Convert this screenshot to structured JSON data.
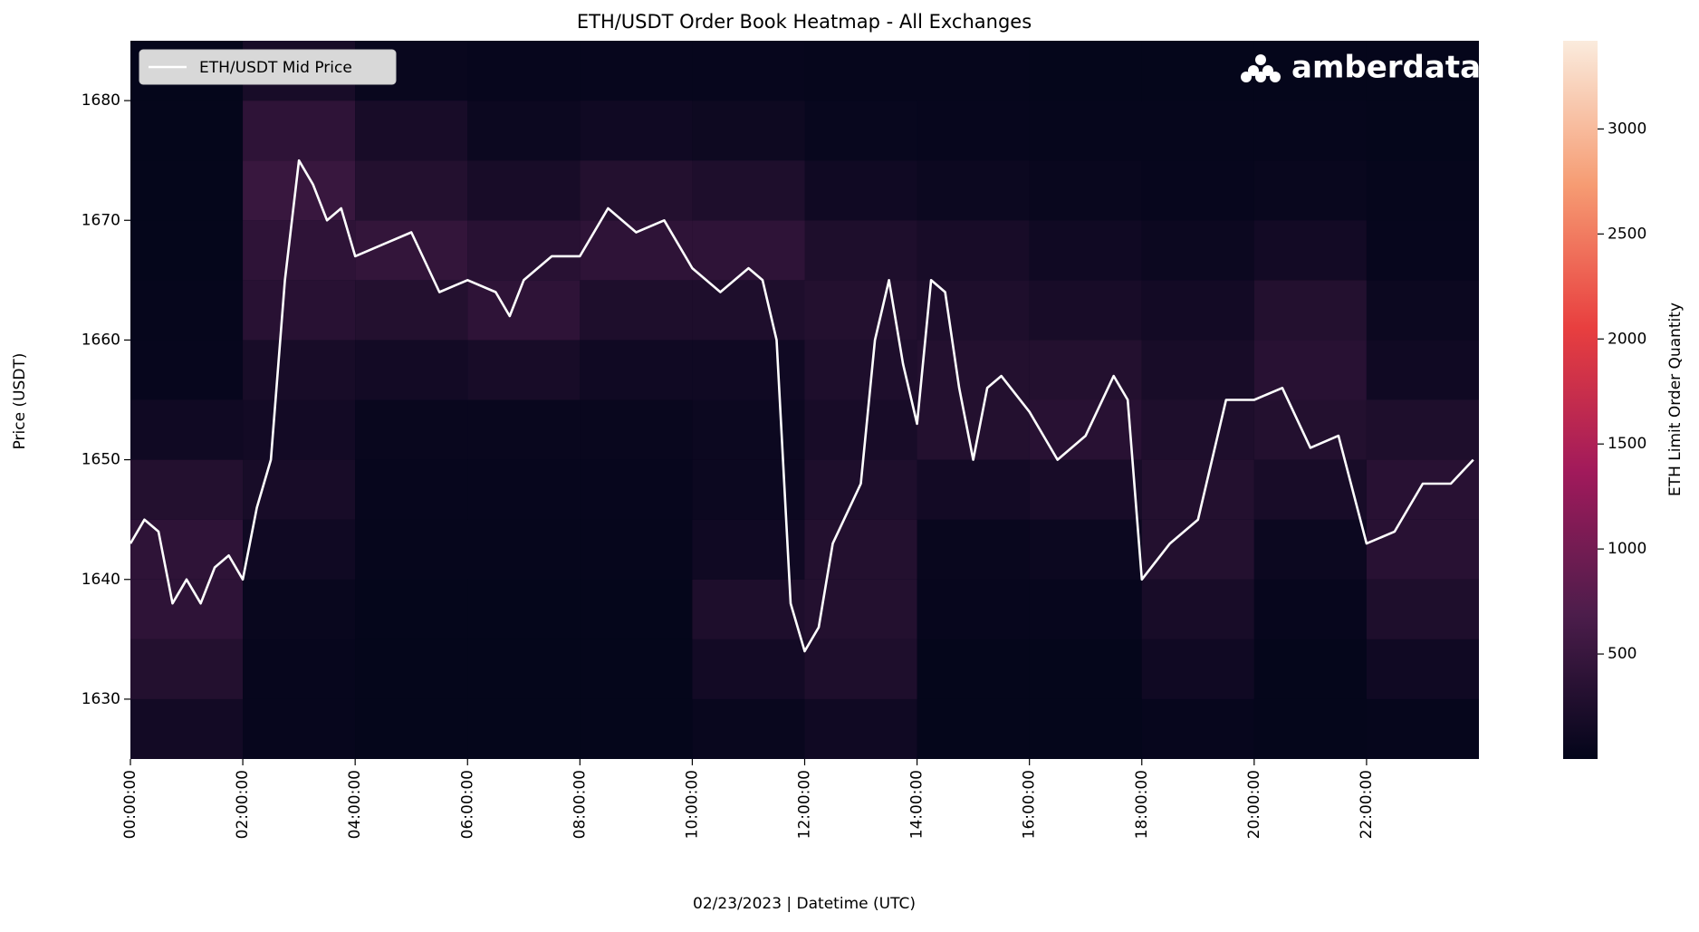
{
  "chart_data": {
    "type": "heatmap",
    "title": "ETH/USDT Order Book Heatmap - All Exchanges",
    "xlabel": "02/23/2023 | Datetime (UTC)",
    "ylabel": "Price (USDT)",
    "logo": "amberdata",
    "legend": "upper left",
    "xlim": [
      0,
      24
    ],
    "ylim": [
      1625,
      1685
    ],
    "xticks": [
      {
        "value": 0,
        "label": "00:00:00"
      },
      {
        "value": 2,
        "label": "02:00:00"
      },
      {
        "value": 4,
        "label": "04:00:00"
      },
      {
        "value": 6,
        "label": "06:00:00"
      },
      {
        "value": 8,
        "label": "08:00:00"
      },
      {
        "value": 10,
        "label": "10:00:00"
      },
      {
        "value": 12,
        "label": "12:00:00"
      },
      {
        "value": 14,
        "label": "14:00:00"
      },
      {
        "value": 16,
        "label": "16:00:00"
      },
      {
        "value": 18,
        "label": "18:00:00"
      },
      {
        "value": 20,
        "label": "20:00:00"
      },
      {
        "value": 22,
        "label": "22:00:00"
      }
    ],
    "yticks": [
      1630,
      1640,
      1650,
      1660,
      1670,
      1680
    ],
    "xbins": [
      0,
      2,
      4,
      6,
      8,
      10,
      12,
      14,
      16,
      18,
      20,
      22,
      24
    ],
    "ybins": [
      1625,
      1630,
      1635,
      1640,
      1645,
      1650,
      1655,
      1660,
      1665,
      1670,
      1675,
      1680,
      1685
    ],
    "z": [
      [
        150,
        40,
        20,
        20,
        20,
        60,
        120,
        20,
        20,
        40,
        20,
        30
      ],
      [
        300,
        40,
        20,
        20,
        20,
        150,
        250,
        20,
        20,
        120,
        20,
        120
      ],
      [
        400,
        60,
        20,
        20,
        20,
        250,
        300,
        40,
        40,
        200,
        40,
        250
      ],
      [
        400,
        120,
        30,
        30,
        30,
        120,
        300,
        60,
        80,
        300,
        80,
        350
      ],
      [
        300,
        200,
        40,
        40,
        40,
        80,
        250,
        150,
        200,
        300,
        200,
        350
      ],
      [
        120,
        150,
        60,
        60,
        60,
        80,
        200,
        300,
        350,
        250,
        300,
        250
      ],
      [
        40,
        200,
        150,
        200,
        120,
        120,
        250,
        300,
        300,
        200,
        350,
        120
      ],
      [
        30,
        350,
        300,
        400,
        250,
        250,
        300,
        250,
        200,
        150,
        300,
        80
      ],
      [
        20,
        400,
        450,
        350,
        400,
        400,
        250,
        200,
        120,
        80,
        150,
        40
      ],
      [
        20,
        500,
        300,
        200,
        300,
        250,
        120,
        80,
        60,
        40,
        60,
        30
      ],
      [
        20,
        400,
        200,
        80,
        120,
        100,
        50,
        40,
        30,
        30,
        30,
        20
      ],
      [
        20,
        200,
        60,
        40,
        40,
        40,
        30,
        30,
        20,
        20,
        20,
        20
      ]
    ],
    "colorbar": {
      "label": "ETH Limit Order Quantity",
      "lim": [
        0,
        3420
      ],
      "ticks": [
        500,
        1000,
        1500,
        2000,
        2500,
        3000
      ],
      "colormap": [
        "#03051a",
        "#4c1d4b",
        "#a11a5b",
        "#e83f3f",
        "#f69c73",
        "#faebdd"
      ]
    },
    "series": [
      {
        "name": "ETH/USDT Mid Price",
        "color": "#ffffff",
        "x": [
          0,
          0.25,
          0.5,
          0.75,
          1,
          1.25,
          1.5,
          1.75,
          2,
          2.25,
          2.5,
          2.75,
          3,
          3.25,
          3.5,
          3.75,
          4,
          4.5,
          5,
          5.5,
          6,
          6.5,
          6.75,
          7,
          7.5,
          8,
          8.5,
          9,
          9.5,
          10,
          10.5,
          11,
          11.25,
          11.5,
          11.75,
          12,
          12.25,
          12.5,
          13,
          13.25,
          13.5,
          13.75,
          14,
          14.25,
          14.5,
          14.75,
          15,
          15.25,
          15.5,
          16,
          16.5,
          17,
          17.5,
          17.75,
          18,
          18.5,
          19,
          19.5,
          20,
          20.5,
          21,
          21.5,
          22,
          22.5,
          23,
          23.5,
          23.9
        ],
        "values": [
          1643,
          1645,
          1644,
          1638,
          1640,
          1638,
          1641,
          1642,
          1640,
          1646,
          1650,
          1665,
          1675,
          1673,
          1670,
          1671,
          1667,
          1668,
          1669,
          1664,
          1665,
          1664,
          1662,
          1665,
          1667,
          1667,
          1671,
          1669,
          1670,
          1666,
          1664,
          1666,
          1665,
          1660,
          1638,
          1634,
          1636,
          1643,
          1648,
          1660,
          1665,
          1658,
          1653,
          1665,
          1664,
          1656,
          1650,
          1656,
          1657,
          1654,
          1650,
          1652,
          1657,
          1655,
          1640,
          1643,
          1645,
          1655,
          1655,
          1656,
          1651,
          1652,
          1643,
          1644,
          1648,
          1648,
          1650
        ]
      }
    ]
  }
}
